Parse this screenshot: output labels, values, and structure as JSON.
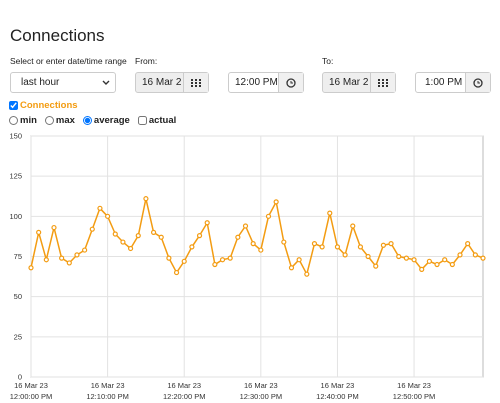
{
  "header": {
    "title": "Connections"
  },
  "form": {
    "range_label": "Select or enter date/time range",
    "range_value": "last hour",
    "from_label": "From:",
    "from_date": "16 Mar 2",
    "from_time": "12:00 PM",
    "to_label": "To:",
    "to_date": "16 Mar 2",
    "to_time": "1:00 PM"
  },
  "options": {
    "modes": [
      "min",
      "max",
      "average"
    ],
    "actual": "actual"
  },
  "chart_data": {
    "type": "line",
    "x": [
      0,
      1,
      2,
      3,
      4,
      5,
      6,
      7,
      8,
      9,
      10,
      11,
      12,
      13,
      14,
      15,
      16,
      17,
      18,
      19,
      20,
      21,
      22,
      23,
      24,
      25,
      26,
      27,
      28,
      29,
      30,
      31,
      32,
      33,
      34,
      35,
      36,
      37,
      38,
      39,
      40,
      41,
      42,
      43,
      44,
      45,
      46,
      47,
      48,
      49,
      50,
      51,
      52,
      53,
      54,
      55,
      56,
      57,
      58,
      59
    ],
    "series": [
      {
        "name": "Connections",
        "color": "#f39c12",
        "values": [
          68,
          90,
          73,
          93,
          74,
          71,
          76,
          79,
          92,
          105,
          100,
          89,
          84,
          80,
          88,
          111,
          90,
          87,
          74,
          65,
          72,
          81,
          88,
          96,
          70,
          73,
          74,
          87,
          94,
          83,
          79,
          100,
          109,
          84,
          68,
          73,
          64,
          83,
          81,
          102,
          81,
          76,
          94,
          81,
          75,
          69,
          82,
          83,
          75,
          74,
          73,
          67,
          72,
          70,
          73,
          70,
          76,
          83,
          76,
          74
        ]
      }
    ],
    "xlim": [
      0,
      59
    ],
    "ylim": [
      0,
      150
    ],
    "yticks": [
      0,
      25,
      50,
      75,
      100,
      125,
      150
    ],
    "xticks": [
      {
        "value": 0,
        "label": [
          "16 Mar 23",
          "12:00:00 PM"
        ]
      },
      {
        "value": 10,
        "label": [
          "16 Mar 23",
          "12:10:00 PM"
        ]
      },
      {
        "value": 20,
        "label": [
          "16 Mar 23",
          "12:20:00 PM"
        ]
      },
      {
        "value": 30,
        "label": [
          "16 Mar 23",
          "12:30:00 PM"
        ]
      },
      {
        "value": 40,
        "label": [
          "16 Mar 23",
          "12:40:00 PM"
        ]
      },
      {
        "value": 50,
        "label": [
          "16 Mar 23",
          "12:50:00 PM"
        ]
      }
    ],
    "grid": true
  }
}
